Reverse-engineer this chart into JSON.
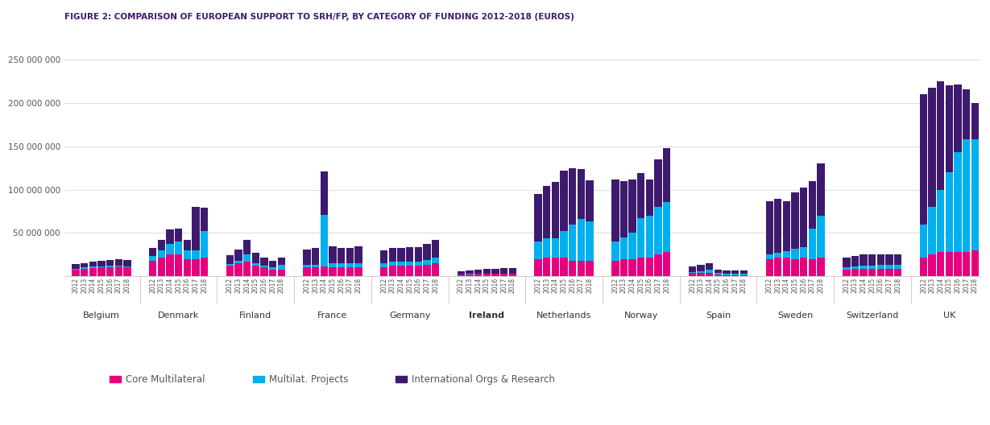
{
  "title": "FIGURE 2: COMPARISON OF EUROPEAN SUPPORT TO SRH/FP, BY CATEGORY OF FUNDING 2012-2018 (EUROS)",
  "years": [
    "2012",
    "2013",
    "2014",
    "2015",
    "2016",
    "2017",
    "2018"
  ],
  "countries": [
    "Belgium",
    "Denmark",
    "Finland",
    "France",
    "Germany",
    "Ireland",
    "Netherlands",
    "Norway",
    "Spain",
    "Sweden",
    "Switzerland",
    "UK"
  ],
  "colors": {
    "core_multilateral": "#e6007e",
    "multilat_projects": "#00b0f0",
    "intl_orgs_research": "#3d1a6e"
  },
  "legend_labels": [
    "Core Multilateral",
    "Multilat. Projects",
    "International Orgs & Research"
  ],
  "data": {
    "Belgium": {
      "core_multilateral": [
        8000000,
        9000000,
        9500000,
        10000000,
        10500000,
        11000000,
        10000000
      ],
      "multilat_projects": [
        1000000,
        1000000,
        1500000,
        1500000,
        2000000,
        1500000,
        1500000
      ],
      "intl_orgs_research": [
        5000000,
        5000000,
        5500000,
        6000000,
        6500000,
        7000000,
        7500000
      ]
    },
    "Denmark": {
      "core_multilateral": [
        18000000,
        22000000,
        25000000,
        25000000,
        20000000,
        20000000,
        22000000
      ],
      "multilat_projects": [
        5000000,
        8000000,
        12000000,
        15000000,
        10000000,
        10000000,
        30000000
      ],
      "intl_orgs_research": [
        10000000,
        12000000,
        17000000,
        15000000,
        12000000,
        50000000,
        27000000
      ]
    },
    "Finland": {
      "core_multilateral": [
        12000000,
        15000000,
        17000000,
        12000000,
        10000000,
        8000000,
        8000000
      ],
      "multilat_projects": [
        2000000,
        3000000,
        8000000,
        3000000,
        2000000,
        2000000,
        5000000
      ],
      "intl_orgs_research": [
        10000000,
        13000000,
        17000000,
        12000000,
        10000000,
        8000000,
        9000000
      ]
    },
    "France": {
      "core_multilateral": [
        10000000,
        10000000,
        11000000,
        10000000,
        10000000,
        10000000,
        10000000
      ],
      "multilat_projects": [
        3000000,
        3000000,
        60000000,
        5000000,
        5000000,
        5000000,
        5000000
      ],
      "intl_orgs_research": [
        18000000,
        20000000,
        50000000,
        20000000,
        18000000,
        18000000,
        20000000
      ]
    },
    "Germany": {
      "core_multilateral": [
        10000000,
        12000000,
        12000000,
        12000000,
        12000000,
        13000000,
        15000000
      ],
      "multilat_projects": [
        5000000,
        5000000,
        5000000,
        5000000,
        5000000,
        6000000,
        7000000
      ],
      "intl_orgs_research": [
        15000000,
        16000000,
        16000000,
        17000000,
        17000000,
        18000000,
        20000000
      ]
    },
    "Ireland": {
      "core_multilateral": [
        2000000,
        2500000,
        3000000,
        3000000,
        3000000,
        3000000,
        3000000
      ],
      "multilat_projects": [
        200000,
        200000,
        200000,
        200000,
        200000,
        200000,
        200000
      ],
      "intl_orgs_research": [
        4000000,
        4000000,
        4500000,
        5000000,
        5500000,
        6000000,
        6000000
      ]
    },
    "Netherlands": {
      "core_multilateral": [
        20000000,
        22000000,
        22000000,
        22000000,
        18000000,
        18000000,
        18000000
      ],
      "multilat_projects": [
        20000000,
        22000000,
        22000000,
        30000000,
        42000000,
        48000000,
        45000000
      ],
      "intl_orgs_research": [
        55000000,
        60000000,
        65000000,
        70000000,
        65000000,
        58000000,
        48000000
      ]
    },
    "Norway": {
      "core_multilateral": [
        18000000,
        20000000,
        20000000,
        22000000,
        22000000,
        25000000,
        28000000
      ],
      "multilat_projects": [
        22000000,
        25000000,
        30000000,
        45000000,
        48000000,
        55000000,
        58000000
      ],
      "intl_orgs_research": [
        72000000,
        65000000,
        62000000,
        52000000,
        42000000,
        55000000,
        62000000
      ]
    },
    "Spain": {
      "core_multilateral": [
        4000000,
        4000000,
        4000000,
        2000000,
        1500000,
        1500000,
        1500000
      ],
      "multilat_projects": [
        1000000,
        2000000,
        4000000,
        1500000,
        1500000,
        1500000,
        1500000
      ],
      "intl_orgs_research": [
        6000000,
        7000000,
        7000000,
        4000000,
        4000000,
        4000000,
        4000000
      ]
    },
    "Sweden": {
      "core_multilateral": [
        20000000,
        22000000,
        22000000,
        20000000,
        22000000,
        20000000,
        22000000
      ],
      "multilat_projects": [
        5000000,
        5000000,
        7000000,
        12000000,
        12000000,
        35000000,
        48000000
      ],
      "intl_orgs_research": [
        62000000,
        62000000,
        58000000,
        65000000,
        68000000,
        55000000,
        60000000
      ]
    },
    "Switzerland": {
      "core_multilateral": [
        8000000,
        9000000,
        9000000,
        9000000,
        9000000,
        9000000,
        9000000
      ],
      "multilat_projects": [
        2000000,
        2500000,
        3000000,
        3500000,
        4000000,
        4000000,
        4000000
      ],
      "intl_orgs_research": [
        12000000,
        12000000,
        13000000,
        13000000,
        12000000,
        12000000,
        12000000
      ]
    },
    "UK": {
      "core_multilateral": [
        22000000,
        25000000,
        28000000,
        28000000,
        28000000,
        28000000,
        30000000
      ],
      "multilat_projects": [
        38000000,
        55000000,
        72000000,
        92000000,
        115000000,
        130000000,
        128000000
      ],
      "intl_orgs_research": [
        150000000,
        138000000,
        125000000,
        100000000,
        78000000,
        58000000,
        42000000
      ]
    }
  },
  "ylim": [
    0,
    260000000
  ],
  "yticks": [
    0,
    50000000,
    100000000,
    150000000,
    200000000,
    250000000
  ],
  "ytick_labels": [
    "",
    "50 000 000",
    "100 000 000",
    "150 000 000",
    "200 000 000",
    "250 000 000"
  ],
  "background_color": "#ffffff",
  "title_color": "#3d1a6e",
  "grid_color": "#cccccc",
  "text_color": "#555555"
}
